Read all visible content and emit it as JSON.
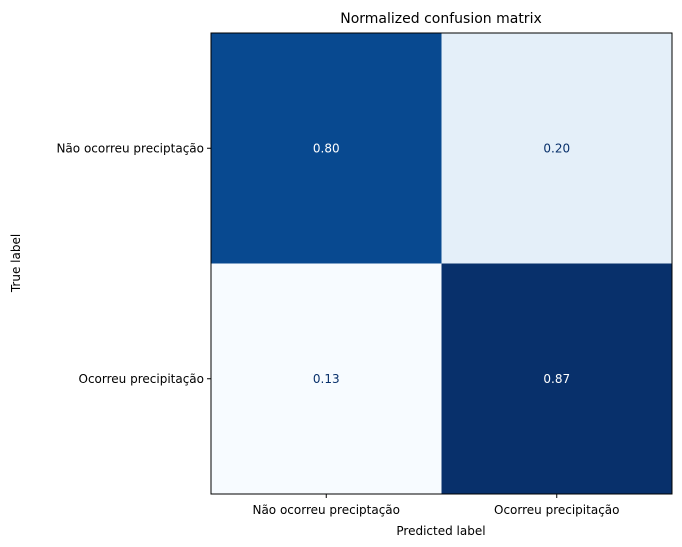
{
  "chart_data": {
    "type": "heatmap",
    "title": "Normalized confusion matrix",
    "xlabel": "Predicted label",
    "ylabel": "True label",
    "x_categories": [
      "Não ocorreu preciptação",
      "Ocorreu precipitação"
    ],
    "y_categories": [
      "Não ocorreu preciptação",
      "Ocorreu precipitação"
    ],
    "values": [
      [
        0.8,
        0.2
      ],
      [
        0.13,
        0.87
      ]
    ],
    "value_format": "0.00",
    "colormap": "Blues",
    "colors": {
      "low": "#f7fbff",
      "high": "#08306b",
      "text_dark": "#08306b",
      "text_light": "#ffffff"
    },
    "grid": false,
    "legend": "none"
  }
}
